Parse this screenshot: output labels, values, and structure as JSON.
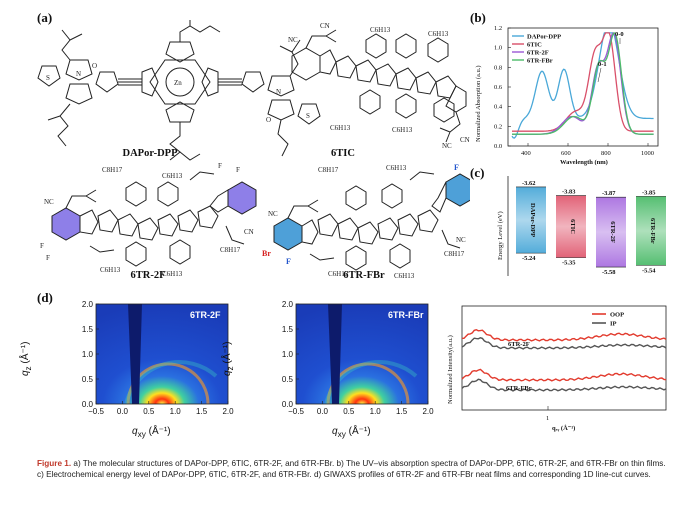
{
  "panel_labels": {
    "a": "(a)",
    "b": "(b)",
    "c": "(c)",
    "d": "(d)"
  },
  "molecules": {
    "m1": {
      "name": "DAPor-DPP"
    },
    "m2": {
      "name": "6TIC"
    },
    "m3": {
      "name": "6TR-2F"
    },
    "m4": {
      "name": "6TR-FBr"
    },
    "subs": {
      "c6h13": "C6H13",
      "c8h17": "C8H17",
      "cn": "CN",
      "nc": "NC",
      "zn": "Zn",
      "f": "F",
      "br": "Br",
      "n": "N",
      "o": "O",
      "s": "S"
    }
  },
  "uv": {
    "ylabel": "Normalized Absorption (a.u.)",
    "xlabel": "Wavelength (nm)",
    "peak_00": "0-0",
    "peak_01": "0-1",
    "xticks": [
      "400",
      "600",
      "800",
      "1000"
    ],
    "yticks": [
      "0.0",
      "0.2",
      "0.4",
      "0.6",
      "0.8",
      "1.0",
      "1.2"
    ],
    "legend": [
      "DAPor-DPP",
      "6TIC",
      "6TR-2F",
      "6TR-FBr"
    ],
    "colors": [
      "#4aa8d8",
      "#d9506a",
      "#9b59d6",
      "#4cbb6a"
    ]
  },
  "energy": {
    "ylabel": "Energy Level (eV)",
    "bars": [
      {
        "name": "DAPor-DPP",
        "top": "-3.62",
        "bottom": "-5.24",
        "color": "#4aa8d8"
      },
      {
        "name": "6TIC",
        "top": "-3.83",
        "bottom": "-5.35",
        "color": "#e05a70"
      },
      {
        "name": "6TR-2F",
        "top": "-3.87",
        "bottom": "-5.58",
        "color": "#a970e0"
      },
      {
        "name": "6TR-FBr",
        "top": "-3.85",
        "bottom": "-5.54",
        "color": "#4cbb6a"
      }
    ]
  },
  "giwaxs": [
    {
      "tag": "6TR-2F"
    },
    {
      "tag": "6TR-FBr"
    }
  ],
  "giwaxs_axes": {
    "xlabel": "q",
    "xlabel_sub": "xy",
    "xlabel_unit": " (Å⁻¹)",
    "ylabel": "q",
    "ylabel_sub": "z",
    "ylabel_unit": " (Å⁻¹)",
    "xticks": [
      "−0.5",
      "0.0",
      "0.5",
      "1.0",
      "1.5",
      "2.0"
    ],
    "yticks": [
      "0.0",
      "0.5",
      "1.0",
      "1.5",
      "2.0"
    ]
  },
  "linecut": {
    "ylabel": "Normalized Intensity(a.u.)",
    "xlabel": "qₓᵧ (Å⁻¹)",
    "xtick": "1",
    "legend": [
      "OOP",
      "IP"
    ],
    "colors": [
      "#e23b2e",
      "#555555"
    ],
    "trace_labels": [
      "6TR-2F",
      "6TR-FBr"
    ]
  },
  "caption": {
    "fig": "Figure 1.",
    "text": " a) The molecular structures of DAPor-DPP, 6TIC, 6TR-2F, and 6TR-FBr. b) The UV–vis absorption spectra of DAPor-DPP, 6TIC, 6TR-2F, and 6TR-FBr on thin films. c) Electrochemical energy level of DAPor-DPP, 6TIC, 6TR-2F, and 6TR-FBr. d) GIWAXS profiles of 6TR-2F and 6TR-FBr neat films and corresponding 1D line-cut curves."
  }
}
